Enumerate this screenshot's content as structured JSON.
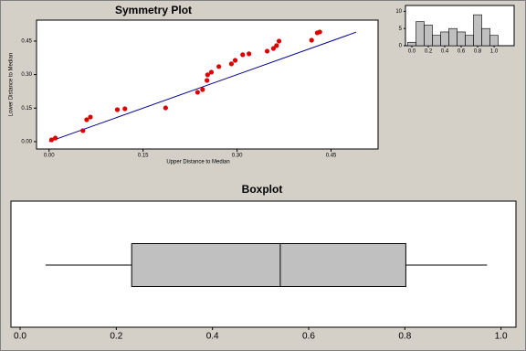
{
  "chart_data": [
    {
      "type": "scatter",
      "title": "Symmetry Plot",
      "xlabel": "Upper Distance to Median",
      "ylabel": "Lower Distance to Median",
      "x": [
        0.004,
        0.01,
        0.054,
        0.06,
        0.066,
        0.109,
        0.121,
        0.186,
        0.237,
        0.245,
        0.252,
        0.253,
        0.259,
        0.271,
        0.291,
        0.297,
        0.309,
        0.319,
        0.348,
        0.358,
        0.363,
        0.367,
        0.419,
        0.428,
        0.432
      ],
      "y": [
        0.008,
        0.016,
        0.049,
        0.098,
        0.11,
        0.143,
        0.147,
        0.151,
        0.221,
        0.233,
        0.274,
        0.299,
        0.311,
        0.336,
        0.348,
        0.364,
        0.389,
        0.393,
        0.405,
        0.417,
        0.43,
        0.45,
        0.454,
        0.487,
        0.491
      ],
      "color": "#dd0000",
      "reference_line": {
        "x": [
          0,
          0.49
        ],
        "y": [
          0,
          0.49
        ],
        "color": "#00008b"
      },
      "xlim": [
        -0.02,
        0.525
      ],
      "ylim": [
        -0.033,
        0.544
      ],
      "xticks": [
        {
          "value": 0,
          "label": "0.00"
        },
        {
          "value": 0.15,
          "label": "0.15"
        },
        {
          "value": 0.3,
          "label": "0.30"
        },
        {
          "value": 0.45,
          "label": "0.45"
        }
      ],
      "yticks": [
        {
          "value": 0,
          "label": "0.00"
        },
        {
          "value": 0.15,
          "label": "0.15"
        },
        {
          "value": 0.3,
          "label": "0.30"
        },
        {
          "value": 0.45,
          "label": "0.45"
        }
      ]
    },
    {
      "type": "histogram",
      "bins": [
        -0.05,
        0.05,
        0.15,
        0.25,
        0.35,
        0.45,
        0.55,
        0.65,
        0.75,
        0.85,
        0.95,
        1.05
      ],
      "counts": [
        1,
        7,
        6,
        3,
        4,
        5,
        4,
        3,
        9,
        5,
        3
      ],
      "color": "#c0c0c0",
      "xlim": [
        -0.078,
        1.244
      ],
      "ylim": [
        0,
        11.7
      ],
      "xticks": [
        {
          "value": 0,
          "label": "0.0"
        },
        {
          "value": 0.2,
          "label": "0.2"
        },
        {
          "value": 0.4,
          "label": "0.4"
        },
        {
          "value": 0.6,
          "label": "0.6"
        },
        {
          "value": 0.8,
          "label": "0.8"
        },
        {
          "value": 1,
          "label": "1.0"
        }
      ],
      "yticks": [
        0,
        5,
        10
      ]
    },
    {
      "type": "box",
      "title": "Boxplot",
      "min": 0.053,
      "q1": 0.232,
      "median": 0.541,
      "q3": 0.802,
      "max": 0.971,
      "color": "#c0c0c0",
      "xlim": [
        -0.019,
        1.031
      ],
      "xticks": [
        {
          "value": 0,
          "label": "0.0"
        },
        {
          "value": 0.2,
          "label": "0.2"
        },
        {
          "value": 0.4,
          "label": "0.4"
        },
        {
          "value": 0.6,
          "label": "0.6"
        },
        {
          "value": 0.8,
          "label": "0.8"
        },
        {
          "value": 1,
          "label": "1.0"
        }
      ]
    }
  ]
}
